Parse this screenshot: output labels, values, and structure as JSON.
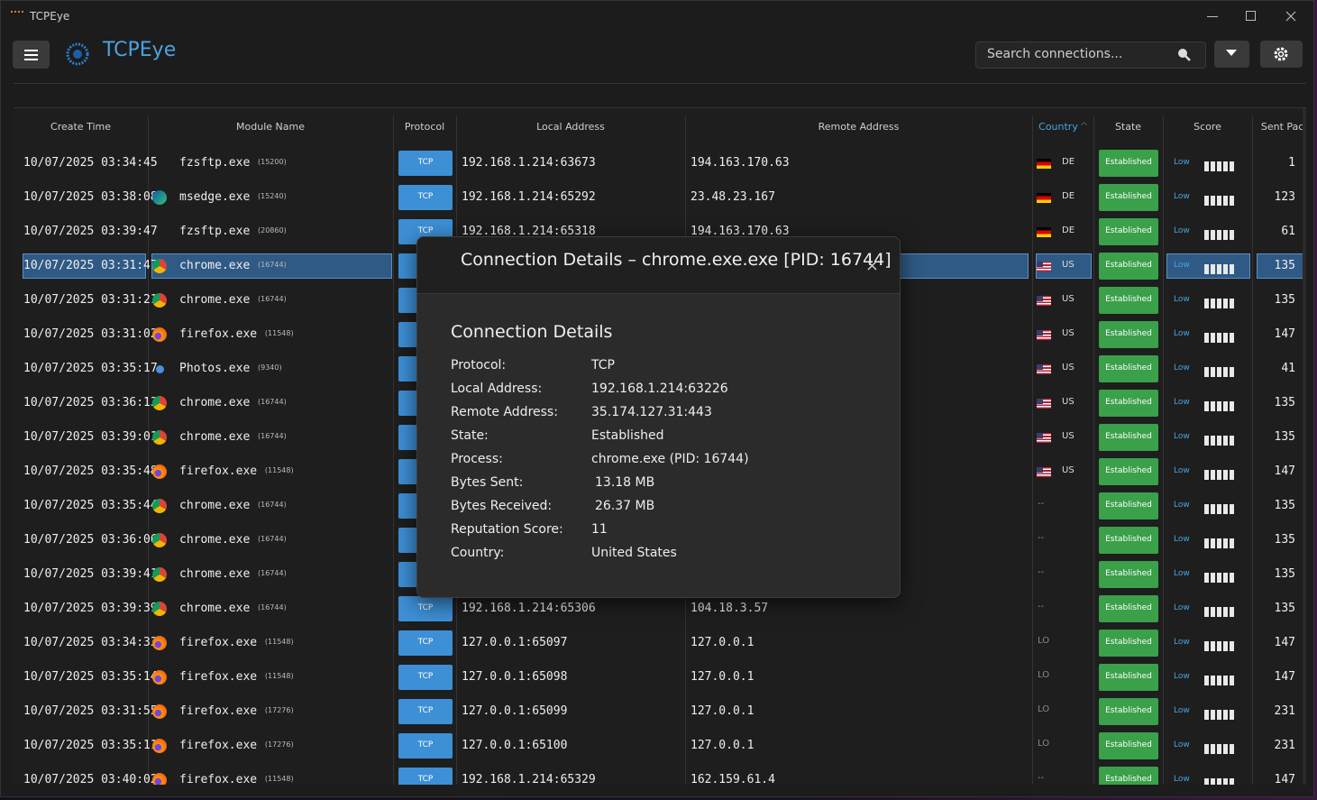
{
  "window": {
    "title": "TCPEye"
  },
  "header": {
    "app_name": "TCPEye",
    "search_placeholder": "Search connections..."
  },
  "table": {
    "columns": [
      "Create Time",
      "Module Name",
      "Protocol",
      "Local Address",
      "Remote Address",
      "Country",
      "State",
      "Score",
      "Sent Packe"
    ],
    "rows": [
      {
        "time": "10/07/2025 03:34:45",
        "module": "fzsftp.exe",
        "pid": "(15200)",
        "protocol": "TCP",
        "local": "192.168.1.214:63673",
        "remote": "194.163.170.63",
        "country": "DE",
        "state": "Established",
        "score": "Low",
        "sent": 1
      },
      {
        "time": "10/07/2025 03:38:08",
        "module": "msedge.exe",
        "pid": "(15240)",
        "protocol": "TCP",
        "local": "192.168.1.214:65292",
        "remote": "23.48.23.167",
        "country": "DE",
        "state": "Established",
        "score": "Low",
        "sent": 123
      },
      {
        "time": "10/07/2025 03:39:47",
        "module": "fzsftp.exe",
        "pid": "(20860)",
        "protocol": "TCP",
        "local": "192.168.1.214:65318",
        "remote": "194.163.170.63",
        "country": "DE",
        "state": "Established",
        "score": "Low",
        "sent": 61
      },
      {
        "time": "10/07/2025 03:31:47",
        "module": "chrome.exe",
        "pid": "(16744)",
        "protocol": null,
        "local": null,
        "remote": null,
        "country": "US",
        "state": "Established",
        "score": "Low",
        "sent": 135
      },
      {
        "time": "10/07/2025 03:31:21",
        "module": "chrome.exe",
        "pid": "(16744)",
        "protocol": null,
        "local": null,
        "remote": null,
        "country": "US",
        "state": "Established",
        "score": "Low",
        "sent": 135
      },
      {
        "time": "10/07/2025 03:31:02",
        "module": "firefox.exe",
        "pid": "(11548)",
        "protocol": null,
        "local": null,
        "remote": null,
        "country": "US",
        "state": "Established",
        "score": "Low",
        "sent": 147
      },
      {
        "time": "10/07/2025 03:35:17",
        "module": "Photos.exe",
        "pid": "(9340)",
        "protocol": null,
        "local": null,
        "remote": null,
        "country": "US",
        "state": "Established",
        "score": "Low",
        "sent": 41
      },
      {
        "time": "10/07/2025 03:36:13",
        "module": "chrome.exe",
        "pid": "(16744)",
        "protocol": null,
        "local": null,
        "remote": null,
        "country": "US",
        "state": "Established",
        "score": "Low",
        "sent": 135
      },
      {
        "time": "10/07/2025 03:39:01",
        "module": "chrome.exe",
        "pid": "(16744)",
        "protocol": null,
        "local": null,
        "remote": null,
        "country": "US",
        "state": "Established",
        "score": "Low",
        "sent": 135
      },
      {
        "time": "10/07/2025 03:35:48",
        "module": "firefox.exe",
        "pid": "(11548)",
        "protocol": null,
        "local": null,
        "remote": null,
        "country": "US",
        "state": "Established",
        "score": "Low",
        "sent": 147
      },
      {
        "time": "10/07/2025 03:35:44",
        "module": "chrome.exe",
        "pid": "(16744)",
        "protocol": null,
        "local": null,
        "remote": null,
        "country": "--",
        "state": "Established",
        "score": "Low",
        "sent": 135
      },
      {
        "time": "10/07/2025 03:36:06",
        "module": "chrome.exe",
        "pid": "(16744)",
        "protocol": null,
        "local": null,
        "remote": null,
        "country": "--",
        "state": "Established",
        "score": "Low",
        "sent": 135
      },
      {
        "time": "10/07/2025 03:39:41",
        "module": "chrome.exe",
        "pid": "(16744)",
        "protocol": null,
        "local": null,
        "remote": null,
        "country": "--",
        "state": "Established",
        "score": "Low",
        "sent": 135
      },
      {
        "time": "10/07/2025 03:39:39",
        "module": "chrome.exe",
        "pid": "(16744)",
        "protocol": "TCP",
        "local": "192.168.1.214:65306",
        "remote": "104.18.3.57",
        "country": "--",
        "state": "Established",
        "score": "Low",
        "sent": 135
      },
      {
        "time": "10/07/2025 03:34:33",
        "module": "firefox.exe",
        "pid": "(11548)",
        "protocol": "TCP",
        "local": "127.0.0.1:65097",
        "remote": "127.0.0.1",
        "country": "LO",
        "state": "Established",
        "score": "Low",
        "sent": 147
      },
      {
        "time": "10/07/2025 03:35:14",
        "module": "firefox.exe",
        "pid": "(11548)",
        "protocol": "TCP",
        "local": "127.0.0.1:65098",
        "remote": "127.0.0.1",
        "country": "LO",
        "state": "Established",
        "score": "Low",
        "sent": 147
      },
      {
        "time": "10/07/2025 03:31:55",
        "module": "firefox.exe",
        "pid": "(17276)",
        "protocol": "TCP",
        "local": "127.0.0.1:65099",
        "remote": "127.0.0.1",
        "country": "LO",
        "state": "Established",
        "score": "Low",
        "sent": 231
      },
      {
        "time": "10/07/2025 03:35:11",
        "module": "firefox.exe",
        "pid": "(17276)",
        "protocol": "TCP",
        "local": "127.0.0.1:65100",
        "remote": "127.0.0.1",
        "country": "LO",
        "state": "Established",
        "score": "Low",
        "sent": 231
      },
      {
        "time": "10/07/2025 03:40:02",
        "module": "firefox.exe",
        "pid": "(11548)",
        "protocol": "TCP",
        "local": "192.168.1.214:65329",
        "remote": "162.159.61.4",
        "country": "--",
        "state": "Established",
        "score": "Low",
        "sent": 147
      }
    ],
    "selected_row": 3
  },
  "dialog": {
    "title": "Connection Details – chrome.exe.exe [PID: 16744]",
    "heading": "Connection Details",
    "fields": [
      [
        "Protocol:",
        "TCP"
      ],
      [
        "Local Address:",
        "192.168.1.214:63226"
      ],
      [
        "Remote Address:",
        "35.174.127.31:443"
      ],
      [
        "State:",
        "Established"
      ],
      [
        "Process:",
        "chrome.exe (PID: 16744)"
      ],
      [
        "Bytes Sent:",
        "13.18 MB"
      ],
      [
        "Bytes Received:",
        "26.37 MB"
      ],
      [
        "Reputation Score:",
        "11"
      ],
      [
        "Country:",
        "United States"
      ]
    ]
  }
}
